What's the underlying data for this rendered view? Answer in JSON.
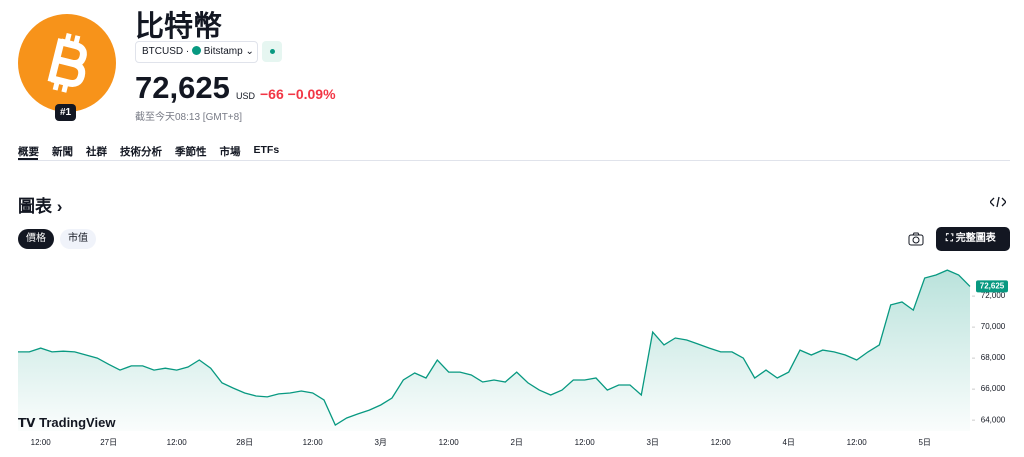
{
  "header": {
    "title": "比特幣",
    "rank": "#1",
    "symbol": "BTCUSD",
    "exchange": "Bitstamp",
    "price": "72,625",
    "currency": "USD",
    "change": "−66",
    "change_pct": "−0.09%",
    "timestamp": "截至今天08:13 [GMT+8]"
  },
  "tabs": [
    "概要",
    "新聞",
    "社群",
    "技術分析",
    "季節性",
    "市場",
    "ETFs"
  ],
  "section": {
    "title": "圖表",
    "buttons": [
      "價格",
      "市值"
    ],
    "full_chart": "完整圖表",
    "brand": "TradingView"
  },
  "chart_data": {
    "type": "area",
    "color": "#089981",
    "categories": [
      null,
      null,
      "12:00",
      null,
      null,
      null,
      null,
      null,
      "27日",
      null,
      null,
      null,
      null,
      null,
      "12:00",
      null,
      null,
      null,
      null,
      null,
      "28日",
      null,
      null,
      null,
      null,
      null,
      "12:00",
      null,
      null,
      null,
      null,
      null,
      "3月",
      null,
      null,
      null,
      null,
      null,
      "12:00",
      null,
      null,
      null,
      null,
      null,
      "2日",
      null,
      null,
      null,
      null,
      null,
      "12:00",
      null,
      null,
      null,
      null,
      null,
      "3日",
      null,
      null,
      null,
      null,
      null,
      "12:00",
      null,
      null,
      null,
      null,
      null,
      "4日",
      null,
      null,
      null,
      null,
      null,
      "12:00",
      null,
      null,
      null,
      null,
      null,
      "5日",
      null,
      null,
      null,
      null
    ],
    "values": [
      68400,
      68400,
      68650,
      68400,
      68450,
      68400,
      68200,
      68000,
      67600,
      67230,
      67500,
      67500,
      67230,
      67350,
      67230,
      67430,
      67880,
      67350,
      66400,
      66070,
      65750,
      65560,
      65500,
      65690,
      65750,
      65880,
      65750,
      65300,
      63690,
      64140,
      64400,
      64650,
      64980,
      65430,
      66590,
      67040,
      66720,
      67880,
      67100,
      67100,
      66910,
      66460,
      66590,
      66460,
      67100,
      66400,
      65940,
      65620,
      65940,
      66590,
      66590,
      66720,
      65940,
      66270,
      66270,
      65620,
      69680,
      68850,
      69300,
      69170,
      68910,
      68650,
      68400,
      68400,
      68000,
      66720,
      67230,
      66720,
      67100,
      68520,
      68200,
      68520,
      68400,
      68200,
      67880,
      68400,
      68850,
      71430,
      71620,
      71100,
      73170,
      73360,
      73680,
      73360,
      72625
    ],
    "ylim": [
      63300,
      74200
    ],
    "yticks": [
      {
        "value": 64000,
        "label": "64,000"
      },
      {
        "value": 66000,
        "label": "66,000"
      },
      {
        "value": 68000,
        "label": "68,000"
      },
      {
        "value": 70000,
        "label": "70,000"
      },
      {
        "value": 72000,
        "label": "72,000"
      }
    ]
  }
}
